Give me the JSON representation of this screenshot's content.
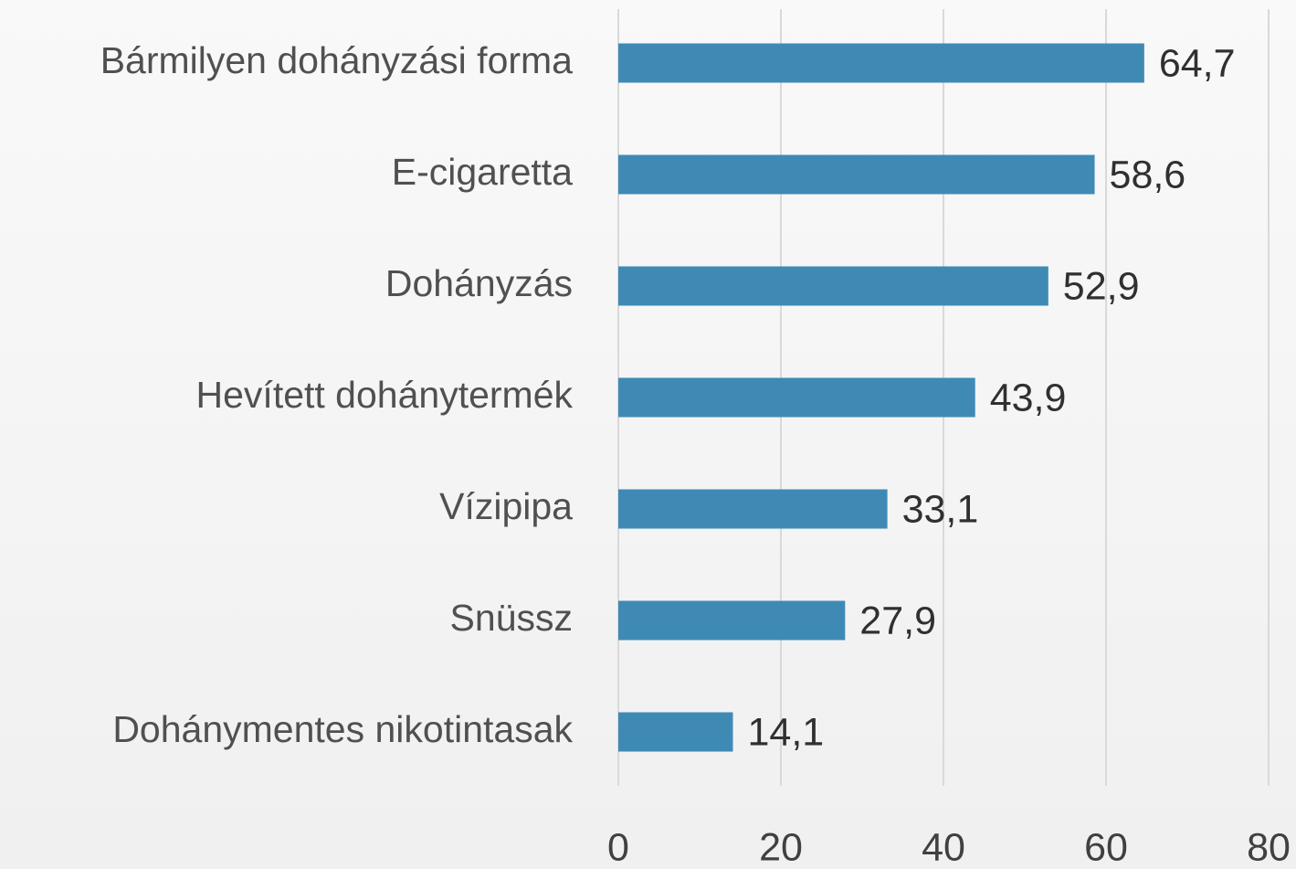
{
  "chart_data": {
    "type": "barh",
    "categories": [
      "Bármilyen dohányzási forma",
      "E-cigaretta",
      "Dohányzás",
      "Hevített dohánytermék",
      "Vízipipa",
      "Snüssz",
      "Dohánymentes nikotintasak"
    ],
    "values": [
      64.7,
      58.6,
      52.9,
      43.9,
      33.1,
      27.9,
      14.1
    ],
    "value_labels": [
      "64,7",
      "58,6",
      "52,9",
      "43,9",
      "33,1",
      "27,9",
      "14,1"
    ],
    "color": "#3f8ab5",
    "xlim": [
      0,
      80
    ],
    "xticks": [
      0,
      20,
      40,
      60,
      80
    ],
    "grid": true
  }
}
